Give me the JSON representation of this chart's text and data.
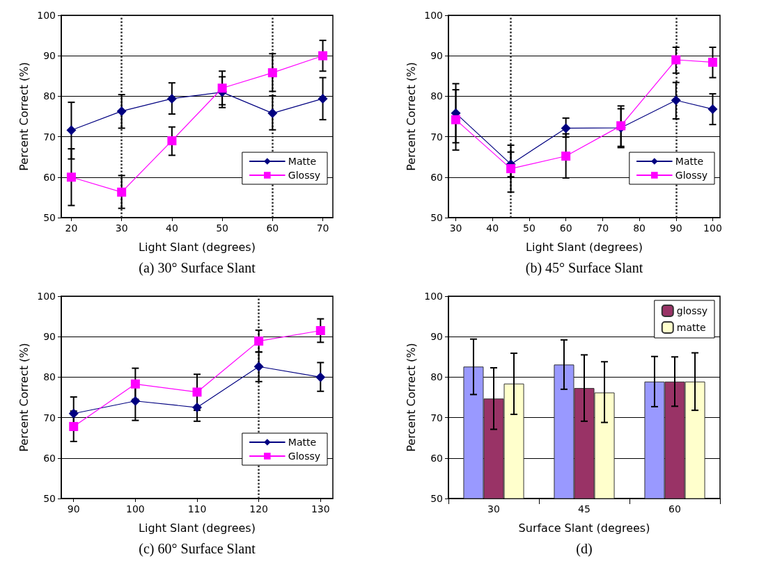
{
  "chart_data": [
    {
      "type": "line",
      "title": "(a) 30° Surface Slant",
      "xlabel": "Light Slant (degrees)",
      "ylabel": "Percent Correct (%)",
      "x": [
        20,
        30,
        40,
        50,
        60,
        70
      ],
      "xlim": [
        18,
        72
      ],
      "xticks": [
        20,
        30,
        40,
        50,
        60,
        70
      ],
      "ylim": [
        50,
        100
      ],
      "yticks": [
        50,
        60,
        70,
        80,
        90,
        100
      ],
      "grid": "y",
      "legend": "bottom right",
      "line_style": "solid",
      "series": [
        {
          "name": "Matte",
          "color": "#000080",
          "marker": "diamond",
          "values": [
            71.6,
            76.3,
            79.4,
            81,
            75.8,
            79.4
          ],
          "errors": [
            [
              64.5,
              78.5
            ],
            [
              72.1,
              80.4
            ],
            [
              75.6,
              83.3
            ],
            [
              77.2,
              84.8
            ],
            [
              71.7,
              80.1
            ],
            [
              74.2,
              84.6
            ]
          ]
        },
        {
          "name": "Glossy",
          "color": "#ff00ff",
          "marker": "square",
          "values": [
            60,
            56.3,
            69,
            82,
            85.8,
            90
          ],
          "errors": [
            [
              53,
              67
            ],
            [
              52.3,
              60.4
            ],
            [
              65.4,
              72.4
            ],
            [
              77.9,
              86.2
            ],
            [
              81.2,
              90.5
            ],
            [
              86.2,
              93.8
            ]
          ]
        }
      ],
      "ref_lines": [
        {
          "axis": "x",
          "value": 30,
          "color": "#333333",
          "line_style": "dotted"
        },
        {
          "axis": "x",
          "value": 60,
          "color": "#333333",
          "line_style": "dotted"
        }
      ]
    },
    {
      "type": "line",
      "title": "(b) 45° Surface Slant",
      "xlabel": "Light Slant (degrees)",
      "ylabel": "Percent Correct (%)",
      "x": [
        30,
        45,
        60,
        75,
        90,
        100
      ],
      "xlim": [
        28,
        102
      ],
      "xticks": [
        30,
        40,
        50,
        60,
        70,
        80,
        90,
        100
      ],
      "ylim": [
        50,
        100
      ],
      "yticks": [
        50,
        60,
        70,
        80,
        90,
        100
      ],
      "grid": "y",
      "legend": "bottom right",
      "line_style": "solid",
      "series": [
        {
          "name": "Matte",
          "color": "#000080",
          "marker": "diamond",
          "values": [
            75.8,
            63.2,
            72.1,
            72.2,
            79,
            76.8
          ],
          "errors": [
            [
              68.5,
              83.1
            ],
            [
              60.1,
              66.2
            ],
            [
              69.9,
              74.6
            ],
            [
              67.3,
              76.9
            ],
            [
              74.4,
              83.4
            ],
            [
              73,
              80.6
            ]
          ]
        },
        {
          "name": "Glossy",
          "color": "#ff00ff",
          "marker": "square",
          "values": [
            74.2,
            62.1,
            65.2,
            72.7,
            89,
            88.4
          ],
          "errors": [
            [
              66.7,
              81.6
            ],
            [
              56.3,
              67.9
            ],
            [
              59.8,
              70.7
            ],
            [
              67.6,
              77.6
            ],
            [
              85.7,
              92.1
            ],
            [
              84.6,
              92.1
            ]
          ]
        }
      ],
      "ref_lines": [
        {
          "axis": "x",
          "value": 45,
          "color": "#333333",
          "line_style": "dotted"
        },
        {
          "axis": "x",
          "value": 90,
          "color": "#333333",
          "line_style": "dotted"
        }
      ]
    },
    {
      "type": "line",
      "title": "(c) 60° Surface Slant",
      "xlabel": "Light Slant (degrees)",
      "ylabel": "Percent Correct (%)",
      "x": [
        90,
        100,
        110,
        120,
        130
      ],
      "xlim": [
        88,
        132
      ],
      "xticks": [
        90,
        100,
        110,
        120,
        130
      ],
      "ylim": [
        50,
        100
      ],
      "yticks": [
        50,
        60,
        70,
        80,
        90,
        100
      ],
      "grid": "y",
      "legend": "bottom right",
      "line_style": "solid",
      "series": [
        {
          "name": "Matte",
          "color": "#000080",
          "marker": "diamond",
          "values": [
            71,
            74.1,
            72.5,
            82.6,
            80
          ],
          "errors": [
            [
              66.9,
              75.1
            ],
            [
              69.3,
              78.9
            ],
            [
              69.1,
              72.5
            ],
            [
              78.9,
              86.2
            ],
            [
              76.5,
              83.6
            ]
          ]
        },
        {
          "name": "Glossy",
          "color": "#ff00ff",
          "marker": "square",
          "values": [
            67.8,
            78.3,
            76.3,
            88.9,
            91.5
          ],
          "errors": [
            [
              64.1,
              71.6
            ],
            [
              74.5,
              82.2
            ],
            [
              71.8,
              80.7
            ],
            [
              86.2,
              91.6
            ],
            [
              88.6,
              94.4
            ]
          ]
        }
      ],
      "ref_lines": [
        {
          "axis": "x",
          "value": 120,
          "color": "#333333",
          "line_style": "dotted"
        }
      ]
    },
    {
      "type": "bar",
      "title": "(d)",
      "xlabel": "Surface Slant (degrees)",
      "ylabel": "Percent Correct (%)",
      "categories": [
        "30",
        "45",
        "60"
      ],
      "ylim": [
        50,
        100
      ],
      "yticks": [
        50,
        60,
        70,
        80,
        90,
        100
      ],
      "grid": "y",
      "legend": "top right",
      "series": [
        {
          "color": "#9999ff",
          "values": [
            82.6,
            83.1,
            78.9
          ],
          "errors": [
            [
              75.7,
              89.4
            ],
            [
              77,
              89.2
            ],
            [
              72.7,
              85.1
            ]
          ]
        },
        {
          "name": "glossy",
          "color": "#993366",
          "values": [
            74.7,
            77.3,
            78.9
          ],
          "errors": [
            [
              67.1,
              82.3
            ],
            [
              69.1,
              85.5
            ],
            [
              72.8,
              85
            ]
          ]
        },
        {
          "name": "matte",
          "color": "#ffffcc",
          "values": [
            78.4,
            76.2,
            78.9
          ],
          "errors": [
            [
              70.8,
              85.9
            ],
            [
              68.8,
              83.8
            ],
            [
              71.8,
              86
            ]
          ]
        }
      ]
    }
  ]
}
